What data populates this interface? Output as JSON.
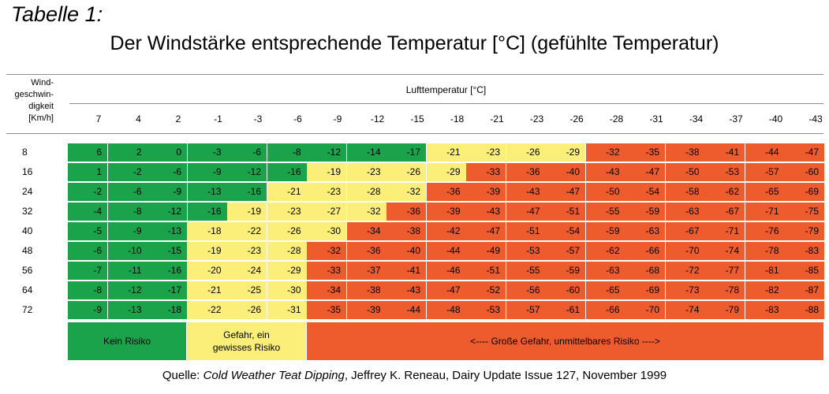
{
  "table_label": "Tabelle 1:",
  "title": "Der Windstärke entsprechende Temperatur [°C] (gefühlte Temperatur)",
  "row_header": "Wind-\ngeschwin-\ndigkeit\n[Km/h]",
  "column_group_header": "Lufttemperatur [°C]",
  "columns": [
    "7",
    "4",
    "2",
    "-1",
    "-3",
    "-6",
    "-9",
    "-12",
    "-15",
    "-18",
    "-21",
    "-23",
    "-26",
    "-28",
    "-31",
    "-34",
    "-37",
    "-40",
    "-43"
  ],
  "rows": [
    {
      "wind": "8",
      "values": [
        "6",
        "2",
        "0",
        "-3",
        "-6",
        "-8",
        "-12",
        "-14",
        "-17",
        "-21",
        "-23",
        "-26",
        "-29",
        "-32",
        "-35",
        "-38",
        "-41",
        "-44",
        "-47"
      ]
    },
    {
      "wind": "16",
      "values": [
        "1",
        "-2",
        "-6",
        "-9",
        "-12",
        "-16",
        "-19",
        "-23",
        "-26",
        "-29",
        "-33",
        "-36",
        "-40",
        "-43",
        "-47",
        "-50",
        "-53",
        "-57",
        "-60"
      ]
    },
    {
      "wind": "24",
      "values": [
        "-2",
        "-6",
        "-9",
        "-13",
        "-16",
        "-21",
        "-23",
        "-28",
        "-32",
        "-36",
        "-39",
        "-43",
        "-47",
        "-50",
        "-54",
        "-58",
        "-62",
        "-65",
        "-69"
      ]
    },
    {
      "wind": "32",
      "values": [
        "-4",
        "-8",
        "-12",
        "-16",
        "-19",
        "-23",
        "-27",
        "-32",
        "-36",
        "-39",
        "-43",
        "-47",
        "-51",
        "-55",
        "-59",
        "-63",
        "-67",
        "-71",
        "-75"
      ]
    },
    {
      "wind": "40",
      "values": [
        "-5",
        "-9",
        "-13",
        "-18",
        "-22",
        "-26",
        "-30",
        "-34",
        "-38",
        "-42",
        "-47",
        "-51",
        "-54",
        "-59",
        "-63",
        "-67",
        "-71",
        "-76",
        "-79"
      ]
    },
    {
      "wind": "48",
      "values": [
        "-6",
        "-10",
        "-15",
        "-19",
        "-23",
        "-28",
        "-32",
        "-36",
        "-40",
        "-44",
        "-49",
        "-53",
        "-57",
        "-62",
        "-66",
        "-70",
        "-74",
        "-78",
        "-83"
      ]
    },
    {
      "wind": "56",
      "values": [
        "-7",
        "-11",
        "-16",
        "-20",
        "-24",
        "-29",
        "-33",
        "-37",
        "-41",
        "-46",
        "-51",
        "-55",
        "-59",
        "-63",
        "-68",
        "-72",
        "-77",
        "-81",
        "-85"
      ]
    },
    {
      "wind": "64",
      "values": [
        "-8",
        "-12",
        "-17",
        "-21",
        "-25",
        "-30",
        "-34",
        "-38",
        "-43",
        "-47",
        "-52",
        "-56",
        "-60",
        "-65",
        "-69",
        "-73",
        "-78",
        "-82",
        "-87"
      ]
    },
    {
      "wind": "72",
      "values": [
        "-9",
        "-13",
        "-18",
        "-22",
        "-26",
        "-31",
        "-35",
        "-39",
        "-44",
        "-48",
        "-53",
        "-57",
        "-61",
        "-66",
        "-70",
        "-74",
        "-79",
        "-83",
        "-88"
      ]
    }
  ],
  "risk_levels": [
    {
      "label": "Kein Risiko",
      "color": "#1ba34b"
    },
    {
      "label": "Gefahr, ein\ngewisses Risiko",
      "color": "#fbef7a"
    },
    {
      "label": "<---- Große Gefahr, unmittelbares Risiko ---->",
      "color": "#ee5b2d"
    }
  ],
  "cell_risk": [
    [
      "green",
      "green",
      "green",
      "green",
      "green",
      "green",
      "green",
      "green",
      "green",
      "yellow",
      "yellow",
      "yellow",
      "yellow",
      "orange",
      "orange",
      "orange",
      "orange",
      "orange",
      "orange"
    ],
    [
      "green",
      "green",
      "green",
      "green",
      "green",
      "green",
      "yellow",
      "yellow",
      "yellow",
      "yellow",
      "orange",
      "orange",
      "orange",
      "orange",
      "orange",
      "orange",
      "orange",
      "orange",
      "orange"
    ],
    [
      "green",
      "green",
      "green",
      "green",
      "green",
      "yellow",
      "yellow",
      "yellow",
      "yellow",
      "orange",
      "orange",
      "orange",
      "orange",
      "orange",
      "orange",
      "orange",
      "orange",
      "orange",
      "orange"
    ],
    [
      "green",
      "green",
      "green",
      "green",
      "yellow",
      "yellow",
      "yellow",
      "yellow",
      "orange",
      "orange",
      "orange",
      "orange",
      "orange",
      "orange",
      "orange",
      "orange",
      "orange",
      "orange",
      "orange"
    ],
    [
      "green",
      "green",
      "green",
      "yellow",
      "yellow",
      "yellow",
      "yellow",
      "orange",
      "orange",
      "orange",
      "orange",
      "orange",
      "orange",
      "orange",
      "orange",
      "orange",
      "orange",
      "orange",
      "orange"
    ],
    [
      "green",
      "green",
      "green",
      "yellow",
      "yellow",
      "yellow",
      "orange",
      "orange",
      "orange",
      "orange",
      "orange",
      "orange",
      "orange",
      "orange",
      "orange",
      "orange",
      "orange",
      "orange",
      "orange"
    ],
    [
      "green",
      "green",
      "green",
      "yellow",
      "yellow",
      "yellow",
      "orange",
      "orange",
      "orange",
      "orange",
      "orange",
      "orange",
      "orange",
      "orange",
      "orange",
      "orange",
      "orange",
      "orange",
      "orange"
    ],
    [
      "green",
      "green",
      "green",
      "yellow",
      "yellow",
      "yellow",
      "orange",
      "orange",
      "orange",
      "orange",
      "orange",
      "orange",
      "orange",
      "orange",
      "orange",
      "orange",
      "orange",
      "orange",
      "orange"
    ],
    [
      "green",
      "green",
      "green",
      "yellow",
      "yellow",
      "yellow",
      "orange",
      "orange",
      "orange",
      "orange",
      "orange",
      "orange",
      "orange",
      "orange",
      "orange",
      "orange",
      "orange",
      "orange",
      "orange"
    ]
  ],
  "source": {
    "prefix": "Quelle: ",
    "work": "Cold Weather Teat Dipping",
    "rest": ", Jeffrey K. Reneau, Dairy Update Issue 127, November 1999"
  }
}
